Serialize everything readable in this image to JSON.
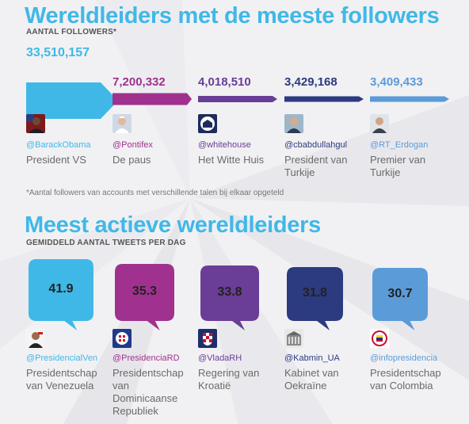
{
  "title1": "Wereldleiders met de meeste followers",
  "subtitle1": "AANTAL FOLLOWERS*",
  "footnote": "*Aantal followers van accounts met verschillende talen bij elkaar opgeteld",
  "title2": "Meest actieve wereldleiders",
  "subtitle2": "GEMIDDELD AANTAL TWEETS PER DAG",
  "colors": {
    "blue": "#3fb8e8",
    "magenta": "#a0318e",
    "purple": "#6a3d96",
    "navy": "#2c3a80",
    "lightblue": "#5b9bd8"
  },
  "chart_data": [
    {
      "type": "bar",
      "title": "Wereldleiders met de meeste followers",
      "ylabel": "AANTAL FOLLOWERS*",
      "categories": [
        "@BarackObama",
        "@Pontifex",
        "@whitehouse",
        "@cbabdullahgul",
        "@RT_Erdogan"
      ],
      "values": [
        33510157,
        7200332,
        4018510,
        3429168,
        3409433
      ],
      "value_labels": [
        "33,510,157",
        "7,200,332",
        "4,018,510",
        "3,429,168",
        "3,409,433"
      ],
      "descriptions": [
        "President VS",
        "De paus",
        "Het Witte Huis",
        "President van Turkije",
        "Premier van Turkije"
      ],
      "icons": [
        "obama-portrait-icon",
        "pope-portrait-icon",
        "white-house-seal-icon",
        "gul-portrait-icon",
        "erdogan-portrait-icon"
      ]
    },
    {
      "type": "bar",
      "title": "Meest actieve wereldleiders",
      "ylabel": "GEMIDDELD AANTAL TWEETS PER DAG",
      "categories": [
        "@PresidencialVen",
        "@PresidenciaRD",
        "@VladaRH",
        "@Kabmin_UA",
        "@infopresidencia"
      ],
      "values": [
        41.9,
        35.3,
        33.8,
        31.8,
        30.7
      ],
      "value_labels": [
        "41.9",
        "35.3",
        "33.8",
        "31.8",
        "30.7"
      ],
      "descriptions": [
        "Presidentschap van Venezuela",
        "Presidentschap van Dominicaanse Republiek",
        "Regering van Kroatië",
        "Kabinet van Oekraïne",
        "Presidentschap van Colombia"
      ],
      "icons": [
        "maduro-portrait-icon",
        "dominican-seal-icon",
        "croatia-shield-icon",
        "kabmin-building-icon",
        "colombia-seal-icon"
      ]
    }
  ]
}
